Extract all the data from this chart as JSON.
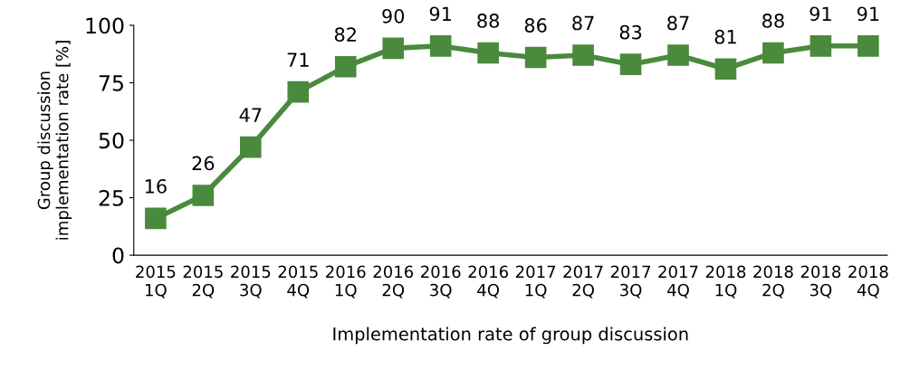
{
  "chart_data": {
    "type": "line",
    "xlabel": "Implementation rate of group discussion",
    "ylabel": "Group discussion\nimplementation rate [%]",
    "categories": [
      "2015\n1Q",
      "2015\n2Q",
      "2015\n3Q",
      "2015\n4Q",
      "2016\n1Q",
      "2016\n2Q",
      "2016\n3Q",
      "2016\n4Q",
      "2017\n1Q",
      "2017\n2Q",
      "2017\n3Q",
      "2017\n4Q",
      "2018\n1Q",
      "2018\n2Q",
      "2018\n3Q",
      "2018\n4Q"
    ],
    "series": [
      {
        "color": "#4a8a3c",
        "values": [
          16,
          26,
          47,
          71,
          82,
          90,
          91,
          88,
          86,
          87,
          83,
          87,
          81,
          88,
          91,
          91
        ]
      }
    ],
    "ylim": [
      0,
      100
    ],
    "yticks": [
      0,
      25,
      50,
      75,
      100
    ],
    "grid": false,
    "legend": false,
    "marker": "square",
    "line_style": "solid",
    "data_labels": true
  }
}
